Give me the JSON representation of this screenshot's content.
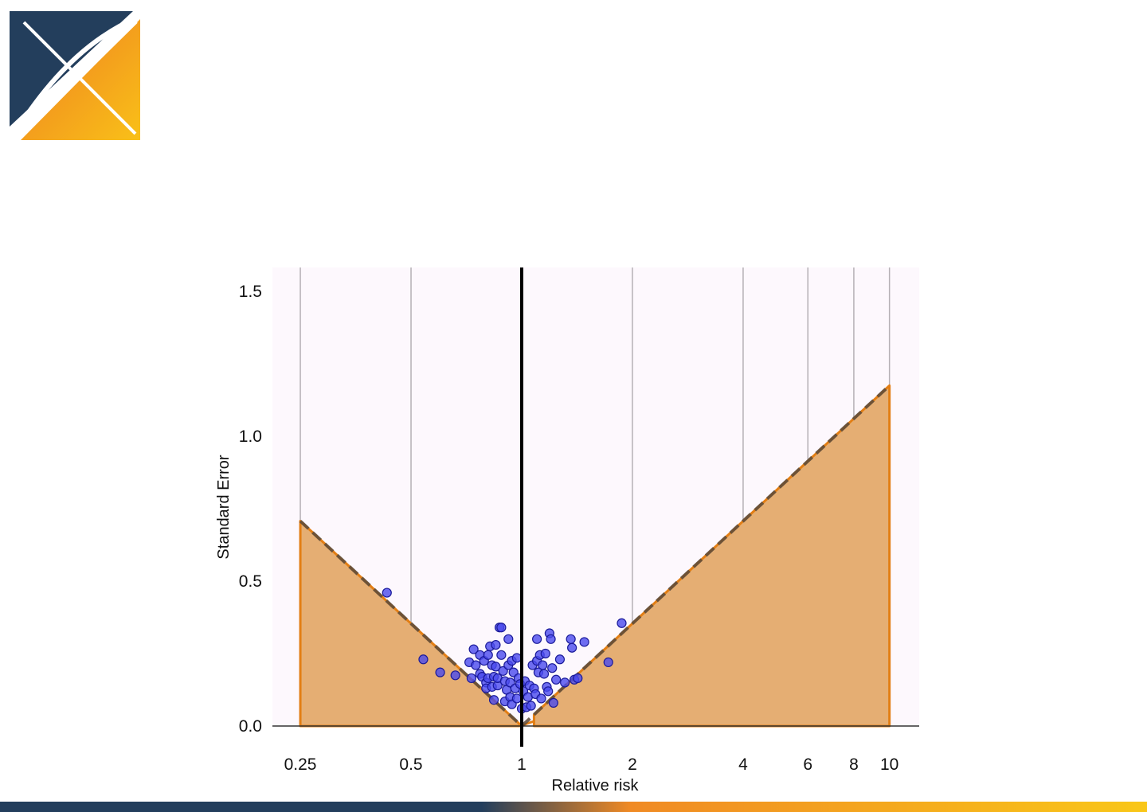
{
  "logo": {
    "icon": "ohdsi-logo-icon",
    "colors": [
      "#233e5c",
      "#f08a24",
      "#f9b918"
    ]
  },
  "colors": {
    "background_panel": "#fdf8fd",
    "gridline": "#b5b0b5",
    "area_fill": "#e5ae73",
    "area_stroke": "#e27e14",
    "dashed_line": "#5a4a3a",
    "null_line": "#000000",
    "point_fill": "#4a4aee",
    "point_stroke": "#1a1a99",
    "bottom_bar": [
      "#233e5c",
      "#f08a24",
      "#f9c718"
    ]
  },
  "chart_data": {
    "type": "scatter",
    "xlabel": "Relative risk",
    "ylabel": "Standard Error",
    "x_scale": "log",
    "xlim": [
      0.2,
      12.5
    ],
    "ylim": [
      0,
      1.6
    ],
    "x_ticks": [
      0.25,
      0.5,
      1,
      2,
      4,
      6,
      8,
      10
    ],
    "x_tick_labels": [
      "0.25",
      "0.5",
      "1",
      "2",
      "4",
      "6",
      "8",
      "10"
    ],
    "y_ticks": [
      0,
      0.5,
      1.0,
      1.5
    ],
    "y_tick_labels": [
      "0.0",
      "0.5",
      "1.0",
      "1.5"
    ],
    "grid": "vertical",
    "null_value": 1,
    "shaded_region": "estimates with p < 0.05 (|log RR| / SE > 1.96)",
    "points": [
      {
        "x": 0.43,
        "y": 0.46
      },
      {
        "x": 0.54,
        "y": 0.23
      },
      {
        "x": 0.6,
        "y": 0.185
      },
      {
        "x": 0.66,
        "y": 0.175
      },
      {
        "x": 0.72,
        "y": 0.22
      },
      {
        "x": 0.73,
        "y": 0.165
      },
      {
        "x": 0.74,
        "y": 0.265
      },
      {
        "x": 0.75,
        "y": 0.21
      },
      {
        "x": 0.77,
        "y": 0.245
      },
      {
        "x": 0.77,
        "y": 0.18
      },
      {
        "x": 0.78,
        "y": 0.17
      },
      {
        "x": 0.79,
        "y": 0.225
      },
      {
        "x": 0.8,
        "y": 0.15
      },
      {
        "x": 0.8,
        "y": 0.13
      },
      {
        "x": 0.81,
        "y": 0.245
      },
      {
        "x": 0.81,
        "y": 0.165
      },
      {
        "x": 0.82,
        "y": 0.275
      },
      {
        "x": 0.83,
        "y": 0.21
      },
      {
        "x": 0.83,
        "y": 0.135
      },
      {
        "x": 0.84,
        "y": 0.17
      },
      {
        "x": 0.84,
        "y": 0.09
      },
      {
        "x": 0.85,
        "y": 0.28
      },
      {
        "x": 0.85,
        "y": 0.205
      },
      {
        "x": 0.86,
        "y": 0.14
      },
      {
        "x": 0.86,
        "y": 0.165
      },
      {
        "x": 0.87,
        "y": 0.34
      },
      {
        "x": 0.88,
        "y": 0.34
      },
      {
        "x": 0.88,
        "y": 0.245
      },
      {
        "x": 0.89,
        "y": 0.19
      },
      {
        "x": 0.9,
        "y": 0.155
      },
      {
        "x": 0.9,
        "y": 0.085
      },
      {
        "x": 0.91,
        "y": 0.125
      },
      {
        "x": 0.92,
        "y": 0.3
      },
      {
        "x": 0.92,
        "y": 0.21
      },
      {
        "x": 0.93,
        "y": 0.15
      },
      {
        "x": 0.93,
        "y": 0.1
      },
      {
        "x": 0.94,
        "y": 0.225
      },
      {
        "x": 0.94,
        "y": 0.075
      },
      {
        "x": 0.95,
        "y": 0.185
      },
      {
        "x": 0.96,
        "y": 0.13
      },
      {
        "x": 0.97,
        "y": 0.235
      },
      {
        "x": 0.97,
        "y": 0.095
      },
      {
        "x": 0.98,
        "y": 0.165
      },
      {
        "x": 0.99,
        "y": 0.145
      },
      {
        "x": 1.0,
        "y": 0.06
      },
      {
        "x": 1.01,
        "y": 0.12
      },
      {
        "x": 1.02,
        "y": 0.155
      },
      {
        "x": 1.03,
        "y": 0.065
      },
      {
        "x": 1.04,
        "y": 0.1
      },
      {
        "x": 1.05,
        "y": 0.14
      },
      {
        "x": 1.06,
        "y": 0.07
      },
      {
        "x": 1.07,
        "y": 0.21
      },
      {
        "x": 1.08,
        "y": 0.13
      },
      {
        "x": 1.09,
        "y": 0.11
      },
      {
        "x": 1.1,
        "y": 0.3
      },
      {
        "x": 1.1,
        "y": 0.225
      },
      {
        "x": 1.11,
        "y": 0.185
      },
      {
        "x": 1.12,
        "y": 0.245
      },
      {
        "x": 1.13,
        "y": 0.095
      },
      {
        "x": 1.14,
        "y": 0.21
      },
      {
        "x": 1.15,
        "y": 0.18
      },
      {
        "x": 1.16,
        "y": 0.25
      },
      {
        "x": 1.17,
        "y": 0.135
      },
      {
        "x": 1.18,
        "y": 0.12
      },
      {
        "x": 1.19,
        "y": 0.32
      },
      {
        "x": 1.2,
        "y": 0.3
      },
      {
        "x": 1.21,
        "y": 0.2
      },
      {
        "x": 1.22,
        "y": 0.08
      },
      {
        "x": 1.24,
        "y": 0.16
      },
      {
        "x": 1.27,
        "y": 0.23
      },
      {
        "x": 1.31,
        "y": 0.15
      },
      {
        "x": 1.36,
        "y": 0.3
      },
      {
        "x": 1.37,
        "y": 0.27
      },
      {
        "x": 1.39,
        "y": 0.16
      },
      {
        "x": 1.42,
        "y": 0.165
      },
      {
        "x": 1.48,
        "y": 0.29
      },
      {
        "x": 1.72,
        "y": 0.22
      },
      {
        "x": 1.87,
        "y": 0.355
      }
    ]
  }
}
